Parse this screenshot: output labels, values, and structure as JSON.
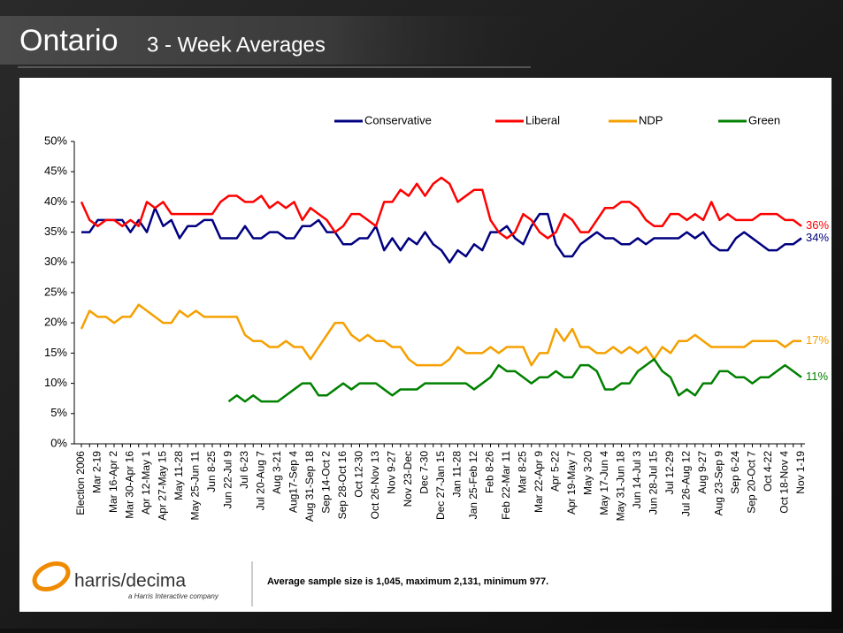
{
  "header": {
    "title_main": "Ontario",
    "title_sub": "3 - Week Averages"
  },
  "chart_data": {
    "type": "line",
    "categories": [
      "Election 2006",
      null,
      "Mar 2-19",
      null,
      "Mar 16-Apr 2",
      null,
      "Mar 30-Apr 16",
      null,
      "Apr 12-May 1",
      null,
      "Apr 27-May 15",
      null,
      "May 11-28",
      null,
      "May 25-Jun 11",
      null,
      "Jun 8-25",
      null,
      "Jun 22-Jul 9",
      null,
      "Jul 6-23",
      null,
      "Jul 20-Aug 7",
      null,
      "Aug 3-21",
      null,
      "Aug17-Sep 4",
      null,
      "Aug 31-Sep 18",
      null,
      "Sep 14-Oct 2",
      null,
      "Sep 28-Oct 16",
      null,
      "Oct 12-30",
      null,
      "Oct 26-Nov 13",
      null,
      "Nov 9-27",
      null,
      "Nov 23-Dec",
      null,
      "Dec 7-30",
      null,
      "Dec 27-Jan 15",
      null,
      "Jan 11-28",
      null,
      "Jan 25-Feb 12",
      null,
      "Feb 8-26",
      null,
      "Feb 22-Mar 11",
      null,
      "Mar 8-25",
      null,
      "Mar 22-Apr 9",
      null,
      "Apr 5-22",
      null,
      "Apr 19-May 7",
      null,
      "May 3-20",
      null,
      "May 17-Jun 4",
      null,
      "May 31-Jun 18",
      null,
      "Jun 14-Jul 3",
      null,
      "Jun 28-Jul 15",
      null,
      "Jul 12-29",
      null,
      "Jul 26-Aug 12",
      null,
      "Aug 9-27",
      null,
      "Aug 23-Sep 9",
      null,
      "Sep 6-24",
      null,
      "Sep 20-Oct 7",
      null,
      "Oct 4-22",
      null,
      "Oct 18-Nov 4",
      null,
      "Nov 1-19"
    ],
    "series": [
      {
        "name": "Conservative",
        "color": "#000080",
        "end_label": "34%",
        "values": [
          35,
          35,
          37,
          37,
          37,
          37,
          35,
          37,
          35,
          39,
          36,
          37,
          34,
          36,
          36,
          37,
          37,
          34,
          34,
          34,
          36,
          34,
          34,
          35,
          35,
          34,
          34,
          36,
          36,
          37,
          35,
          35,
          33,
          33,
          34,
          34,
          36,
          32,
          34,
          32,
          34,
          33,
          35,
          33,
          32,
          30,
          32,
          31,
          33,
          32,
          35,
          35,
          36,
          34,
          33,
          36,
          38,
          38,
          33,
          31,
          31,
          33,
          34,
          35,
          34,
          34,
          33,
          33,
          34,
          33,
          34,
          34,
          34,
          34,
          35,
          34,
          35,
          33,
          32,
          32,
          34,
          35,
          34,
          33,
          32,
          32,
          33,
          33,
          34
        ]
      },
      {
        "name": "Liberal",
        "color": "#ff0000",
        "end_label": "36%",
        "values": [
          40,
          37,
          36,
          37,
          37,
          36,
          37,
          36,
          40,
          39,
          40,
          38,
          38,
          38,
          38,
          38,
          38,
          40,
          41,
          41,
          40,
          40,
          41,
          39,
          40,
          39,
          40,
          37,
          39,
          38,
          37,
          35,
          36,
          38,
          38,
          37,
          36,
          40,
          40,
          42,
          41,
          43,
          41,
          43,
          44,
          43,
          40,
          41,
          42,
          42,
          37,
          35,
          34,
          35,
          38,
          37,
          35,
          34,
          35,
          38,
          37,
          35,
          35,
          37,
          39,
          39,
          40,
          40,
          39,
          37,
          36,
          36,
          38,
          38,
          37,
          38,
          37,
          40,
          37,
          38,
          37,
          37,
          37,
          38,
          38,
          38,
          37,
          37,
          36
        ]
      },
      {
        "name": "NDP",
        "color": "#f5a000",
        "end_label": "17%",
        "values": [
          19,
          22,
          21,
          21,
          20,
          21,
          21,
          23,
          22,
          21,
          20,
          20,
          22,
          21,
          22,
          21,
          21,
          21,
          21,
          21,
          18,
          17,
          17,
          16,
          16,
          17,
          16,
          16,
          14,
          16,
          18,
          20,
          20,
          18,
          17,
          18,
          17,
          17,
          16,
          16,
          14,
          13,
          13,
          13,
          13,
          14,
          16,
          15,
          15,
          15,
          16,
          15,
          16,
          16,
          16,
          13,
          15,
          15,
          19,
          17,
          19,
          16,
          16,
          15,
          15,
          16,
          15,
          16,
          15,
          16,
          14,
          16,
          15,
          17,
          17,
          18,
          17,
          16,
          16,
          16,
          16,
          16,
          17,
          17,
          17,
          17,
          16,
          17,
          17
        ]
      },
      {
        "name": "Green",
        "color": "#008000",
        "end_label": "11%",
        "values": [
          null,
          null,
          null,
          null,
          null,
          null,
          null,
          null,
          null,
          null,
          null,
          null,
          null,
          null,
          null,
          null,
          null,
          null,
          7,
          8,
          7,
          8,
          7,
          7,
          7,
          8,
          9,
          10,
          10,
          8,
          8,
          9,
          10,
          9,
          10,
          10,
          10,
          9,
          8,
          9,
          9,
          9,
          10,
          10,
          10,
          10,
          10,
          10,
          9,
          10,
          11,
          13,
          12,
          12,
          11,
          10,
          11,
          11,
          12,
          11,
          11,
          13,
          13,
          12,
          9,
          9,
          10,
          10,
          12,
          13,
          14,
          12,
          11,
          8,
          9,
          8,
          10,
          10,
          12,
          12,
          11,
          11,
          10,
          11,
          11,
          12,
          13,
          12,
          11
        ]
      }
    ],
    "ylim": [
      0,
      50
    ],
    "yticks": [
      {
        "value": 0,
        "label": "0%"
      },
      {
        "value": 5,
        "label": "5%"
      },
      {
        "value": 10,
        "label": "10%"
      },
      {
        "value": 15,
        "label": "15%"
      },
      {
        "value": 20,
        "label": "20%"
      },
      {
        "value": 25,
        "label": "25%"
      },
      {
        "value": 30,
        "label": "30%"
      },
      {
        "value": 35,
        "label": "35%"
      },
      {
        "value": 40,
        "label": "40%"
      },
      {
        "value": 45,
        "label": "45%"
      },
      {
        "value": 50,
        "label": "50%"
      }
    ],
    "legend": "top"
  },
  "footer": {
    "logo": "harris/decima",
    "logo_tagline": "a Harris Interactive company",
    "note": "Average sample size is 1,045, maximum 2,131, minimum 977."
  }
}
